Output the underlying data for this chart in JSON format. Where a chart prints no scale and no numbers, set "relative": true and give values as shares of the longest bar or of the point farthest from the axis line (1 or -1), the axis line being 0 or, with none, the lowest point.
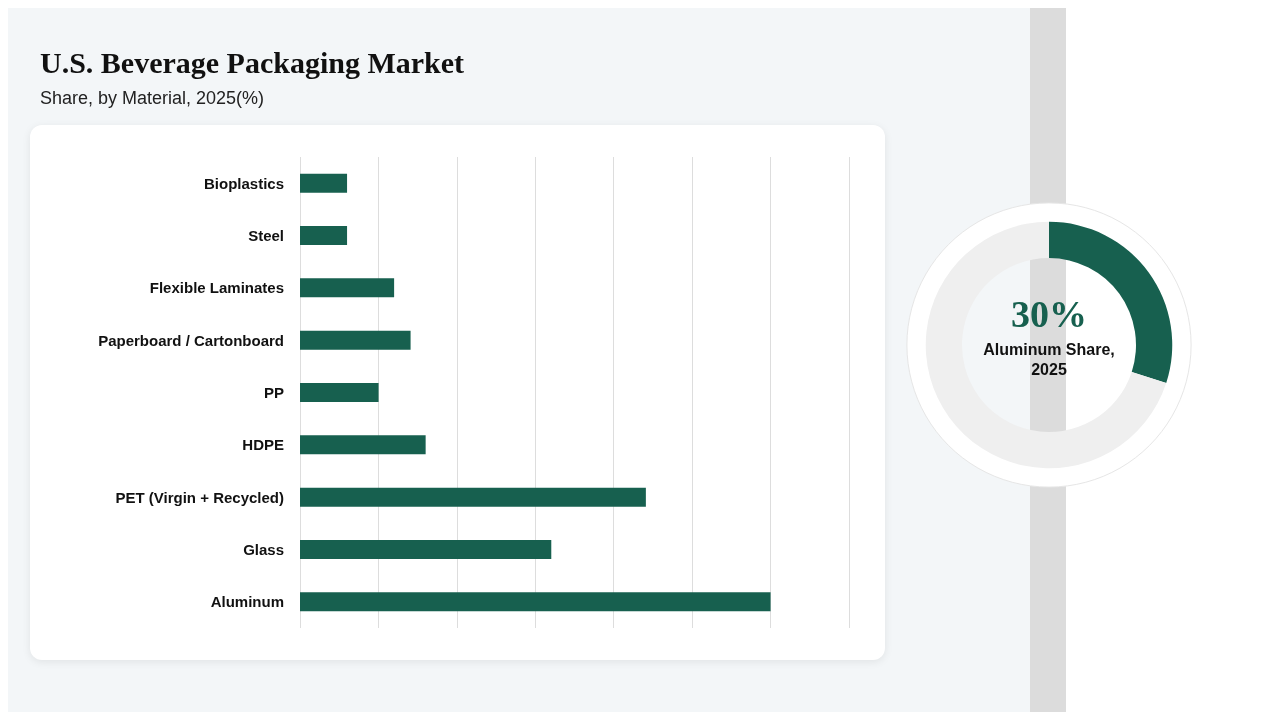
{
  "chart_data": [
    {
      "type": "bar",
      "title": "U.S. Beverage Packaging Market",
      "subtitle": "Share, by Material, 2025(%)",
      "orientation": "horizontal",
      "relative": true,
      "grid": "x",
      "categories": [
        "Bioplastics",
        "Steel",
        "Flexible Laminates",
        "Paperboard / Cartonboard",
        "PP",
        "HDPE",
        "PET (Virgin + Recycled)",
        "Glass",
        "Aluminum"
      ],
      "values": [
        0.1,
        0.1,
        0.2,
        0.235,
        0.167,
        0.267,
        0.735,
        0.534,
        1
      ],
      "color": "#17604f"
    },
    {
      "type": "donut",
      "categories": [
        null,
        null
      ],
      "values": [
        30,
        70
      ],
      "colors": [
        "#17604f",
        "#efefef"
      ],
      "annotations": [
        "30%",
        "Aluminum Share, 2025"
      ]
    }
  ]
}
